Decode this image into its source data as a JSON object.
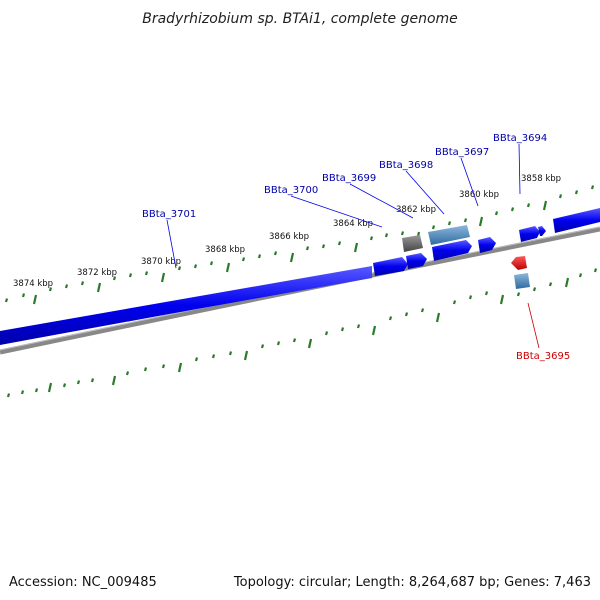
{
  "title": "Bradyrhizobium sp. BTAi1, complete genome",
  "footer": {
    "accession": "Accession: NC_009485",
    "summary": "Topology: circular; Length: 8,264,687 bp; Genes: 7,463"
  },
  "scale_ticks": [
    "3874 kbp",
    "3872 kbp",
    "3870 kbp",
    "3868 kbp",
    "3866 kbp",
    "3864 kbp",
    "3862 kbp",
    "3860 kbp",
    "3858 kbp"
  ],
  "genes_outer": [
    "BBta_3701",
    "BBta_3700",
    "BBta_3699",
    "BBta_3698",
    "BBta_3697",
    "BBta_3694"
  ],
  "genes_inner": [
    "BBta_3695"
  ],
  "colors": {
    "forward_gene": "#0000ee",
    "reverse_gene": "#ee0000",
    "other_gene": "#4a86b8",
    "pseudo_gene": "#6a6a6a",
    "backbone": "#888888",
    "ticks": "#2a7a2a",
    "label_outer": "#0000aa",
    "label_inner": "#cc0000"
  }
}
